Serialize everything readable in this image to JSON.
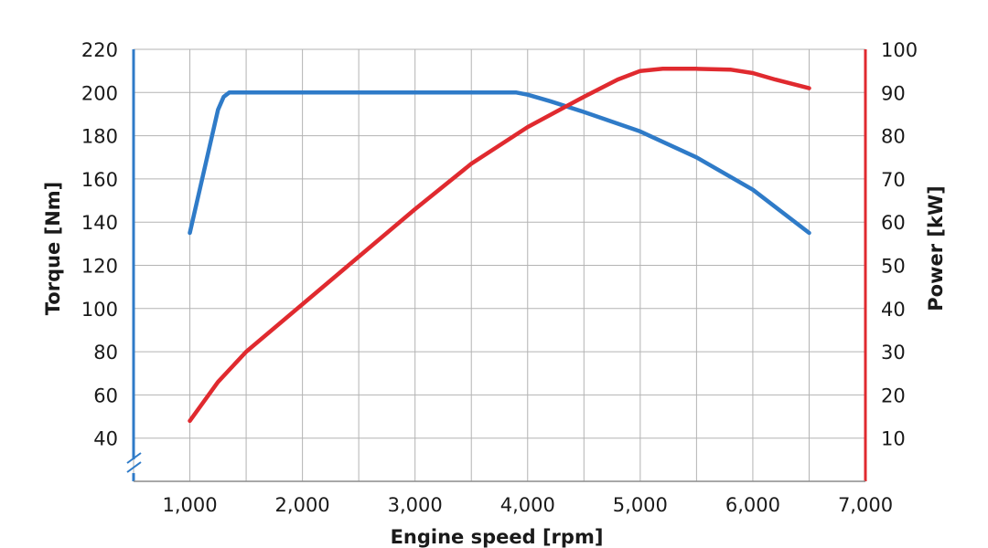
{
  "chart_data": {
    "type": "line",
    "xlabel": "Engine speed [rpm]",
    "ylabel_left": "Torque [Nm]",
    "ylabel_right": "Power [kW]",
    "x_ticks": [
      "1,000",
      "2,000",
      "3,000",
      "4,000",
      "5,000",
      "6,000",
      "7,000"
    ],
    "y_left_ticks": [
      "220",
      "200",
      "180",
      "160",
      "140",
      "120",
      "100",
      "80",
      "60",
      "40"
    ],
    "y_right_ticks": [
      "100",
      "90",
      "80",
      "70",
      "60",
      "50",
      "40",
      "30",
      "20",
      "10"
    ],
    "xlim": [
      500,
      7000
    ],
    "ylim_left": [
      40,
      220
    ],
    "ylim_right": [
      10,
      100
    ],
    "grid": true,
    "left_axis_break": true,
    "series": [
      {
        "axis": "left",
        "color": "#2f7bc8",
        "x": [
          1000,
          1250,
          1300,
          1350,
          1400,
          1500,
          2000,
          2500,
          3000,
          3500,
          3900,
          4000,
          4200,
          4500,
          5000,
          5500,
          6000,
          6500
        ],
        "y": [
          135,
          192,
          198,
          200,
          200,
          200,
          200,
          200,
          200,
          200,
          200,
          199,
          196,
          191,
          182,
          170,
          155,
          135
        ]
      },
      {
        "axis": "right",
        "color": "#e02a2f",
        "x": [
          1000,
          1250,
          1500,
          2000,
          2500,
          3000,
          3500,
          4000,
          4500,
          4800,
          5000,
          5200,
          5500,
          5800,
          6000,
          6200,
          6500
        ],
        "y": [
          14,
          23,
          30,
          41,
          52,
          63,
          73.5,
          82,
          89,
          93,
          95,
          95.5,
          95.5,
          95.3,
          94.5,
          93,
          91
        ]
      }
    ]
  }
}
